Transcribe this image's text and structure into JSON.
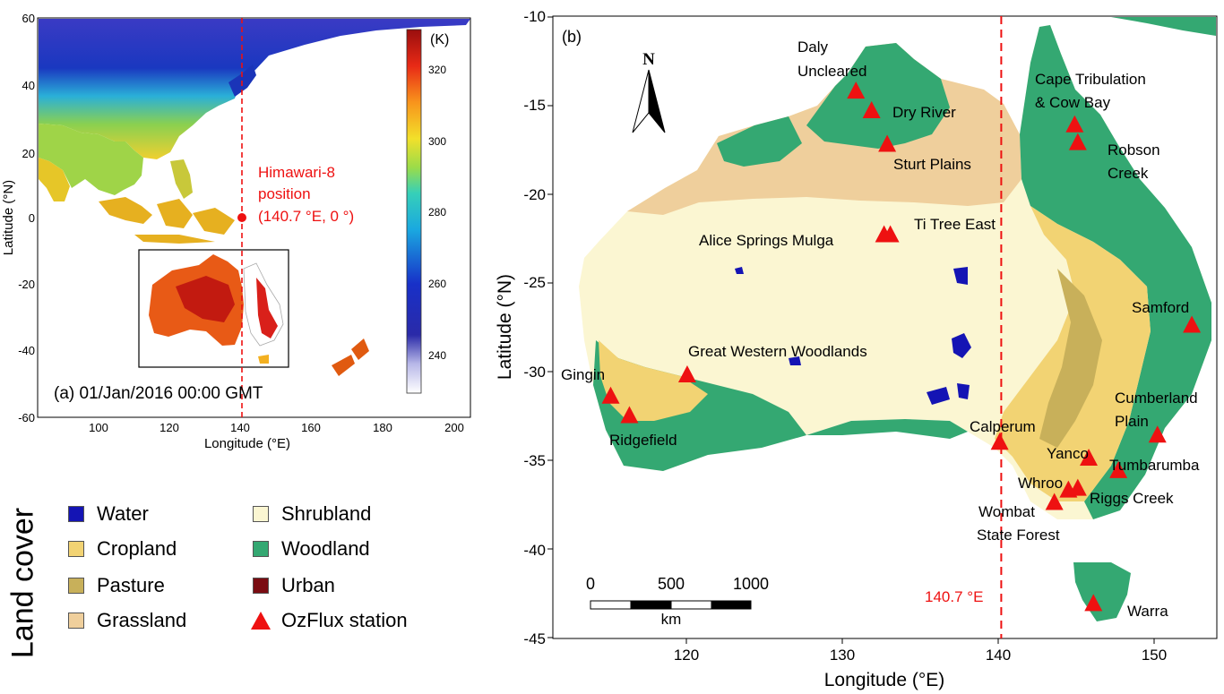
{
  "colors": {
    "water": "#1414b4",
    "cropland": "#f2d373",
    "pasture": "#c8b05a",
    "grassland": "#efcf9c",
    "shrubland": "#fbf6d2",
    "woodland": "#34a872",
    "urban": "#7a0c12",
    "station": "#ee1111",
    "annotation": "#ee1111"
  },
  "panel_a": {
    "label": "(a) 01/Jan/2016 00:00 GMT",
    "x_label": "Longitude (°E)",
    "y_label": "Latitude (°N)",
    "x_ticks": [
      "100",
      "120",
      "140",
      "160",
      "180",
      "200"
    ],
    "y_ticks": [
      "60",
      "40",
      "20",
      "0",
      "-20",
      "-40",
      "-60"
    ],
    "colorbar_unit": "(K)",
    "colorbar_ticks": [
      "320",
      "300",
      "280",
      "260",
      "240"
    ],
    "himawari_label": [
      "Himawari-8",
      "position",
      "(140.7 °E, 0 °)"
    ],
    "himawari_lon": 140.7,
    "himawari_lat": 0
  },
  "panel_b": {
    "label": "(b)",
    "x_label": "Longitude (°E)",
    "y_label": "Latitude (°N)",
    "x_ticks": [
      "120",
      "130",
      "140",
      "150"
    ],
    "y_ticks": [
      "-10",
      "-15",
      "-20",
      "-25",
      "-30",
      "-35",
      "-40",
      "-45"
    ],
    "meridian_label": "140.7 °E",
    "meridian_lon": 140.7,
    "north_label": "N",
    "scalebar": {
      "ticks": [
        "0",
        "500",
        "1000"
      ],
      "unit": "km"
    },
    "stations": [
      {
        "name": "Daly\nUncleared",
        "lon": 131.4,
        "lat": -14.2
      },
      {
        "name": "Dry River",
        "lon": 132.4,
        "lat": -15.3
      },
      {
        "name": "Sturt Plains",
        "lon": 133.4,
        "lat": -17.2
      },
      {
        "name": "Cape Tribulation\n& Cow Bay",
        "lon": 145.4,
        "lat": -16.1
      },
      {
        "name": "Robson\nCreek",
        "lon": 145.6,
        "lat": -17.1
      },
      {
        "name": "Ti Tree East",
        "lon": 133.6,
        "lat": -22.3
      },
      {
        "name": "Alice Springs Mulga",
        "lon": 133.2,
        "lat": -22.3
      },
      {
        "name": "Samford",
        "lon": 152.9,
        "lat": -27.4
      },
      {
        "name": "Great Western Woodlands",
        "lon": 120.6,
        "lat": -30.2
      },
      {
        "name": "Gingin",
        "lon": 115.7,
        "lat": -31.4
      },
      {
        "name": "Ridgefield",
        "lon": 116.9,
        "lat": -32.5
      },
      {
        "name": "Cumberland\nPlain",
        "lon": 150.7,
        "lat": -33.6
      },
      {
        "name": "Calperum",
        "lon": 140.6,
        "lat": -34.0
      },
      {
        "name": "Yanco",
        "lon": 146.3,
        "lat": -34.9
      },
      {
        "name": "Tumbarumba",
        "lon": 148.2,
        "lat": -35.6
      },
      {
        "name": "Whroo",
        "lon": 145.0,
        "lat": -36.7
      },
      {
        "name": "Riggs Creek",
        "lon": 145.6,
        "lat": -36.6
      },
      {
        "name": "Wombat\nState Forest",
        "lon": 144.1,
        "lat": -37.4
      },
      {
        "name": "Warra",
        "lon": 146.6,
        "lat": -43.1
      }
    ]
  },
  "legend": {
    "title": "Land cover",
    "items": [
      {
        "label": "Water",
        "color": "#1414b4",
        "kind": "square"
      },
      {
        "label": "Cropland",
        "color": "#f2d373",
        "kind": "square"
      },
      {
        "label": "Pasture",
        "color": "#c8b05a",
        "kind": "square"
      },
      {
        "label": "Grassland",
        "color": "#efcf9c",
        "kind": "square"
      },
      {
        "label": "Shrubland",
        "color": "#fbf6d2",
        "kind": "square"
      },
      {
        "label": "Woodland",
        "color": "#34a872",
        "kind": "square"
      },
      {
        "label": "Urban",
        "color": "#7a0c12",
        "kind": "square"
      },
      {
        "label": "OzFlux station",
        "color": "#ee1111",
        "kind": "triangle"
      }
    ]
  }
}
